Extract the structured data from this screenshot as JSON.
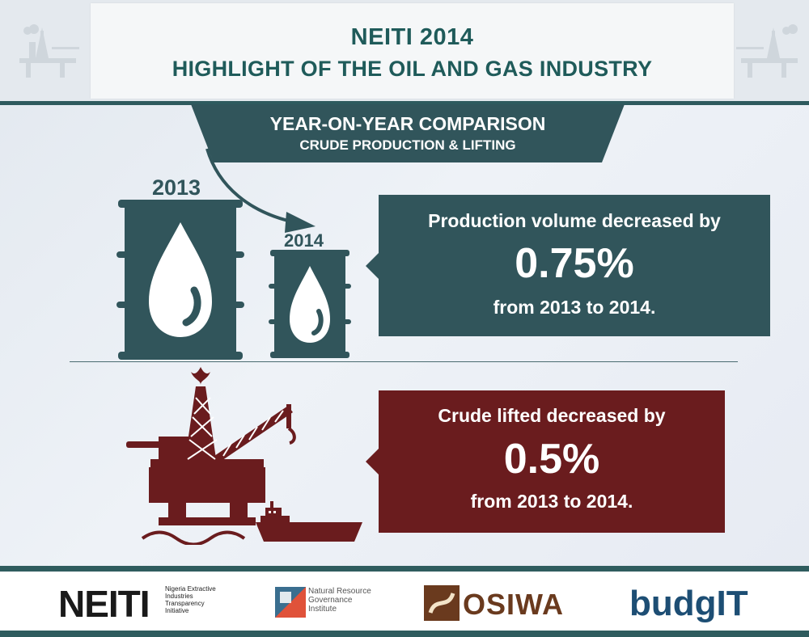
{
  "header": {
    "title_line1": "NEITI 2014",
    "title_line2": "HIGHLIGHT OF THE OIL AND GAS INDUSTRY"
  },
  "banner": {
    "line1": "YEAR-ON-YEAR COMPARISON",
    "line2": "CRUDE PRODUCTION & LIFTING"
  },
  "barrels": {
    "year_a": "2013",
    "year_b": "2014"
  },
  "production": {
    "line1": "Production volume decreased by",
    "value": "0.75%",
    "line3": "from 2013 to 2014."
  },
  "lifting": {
    "line1": "Crude lifted decreased by",
    "value": "0.5%",
    "line3": "from 2013 to 2014."
  },
  "footer": {
    "neiti_logo": "NEITI",
    "neiti_subtitle": "Nigeria Extractive Industries Transparency Initiative",
    "nrgi_subtitle": "Natural Resource Governance Institute",
    "osiwa_logo": "OSIWA",
    "budgit_logo": "budgIT"
  },
  "colors": {
    "teal_dark": "#31555b",
    "maroon": "#6a1c1e",
    "header_green": "#1f5b5a"
  },
  "icons": [
    "oil-barrel-icon",
    "oil-drop-icon",
    "curved-arrow-icon",
    "oil-rig-icon",
    "ship-icon",
    "waves-icon"
  ]
}
